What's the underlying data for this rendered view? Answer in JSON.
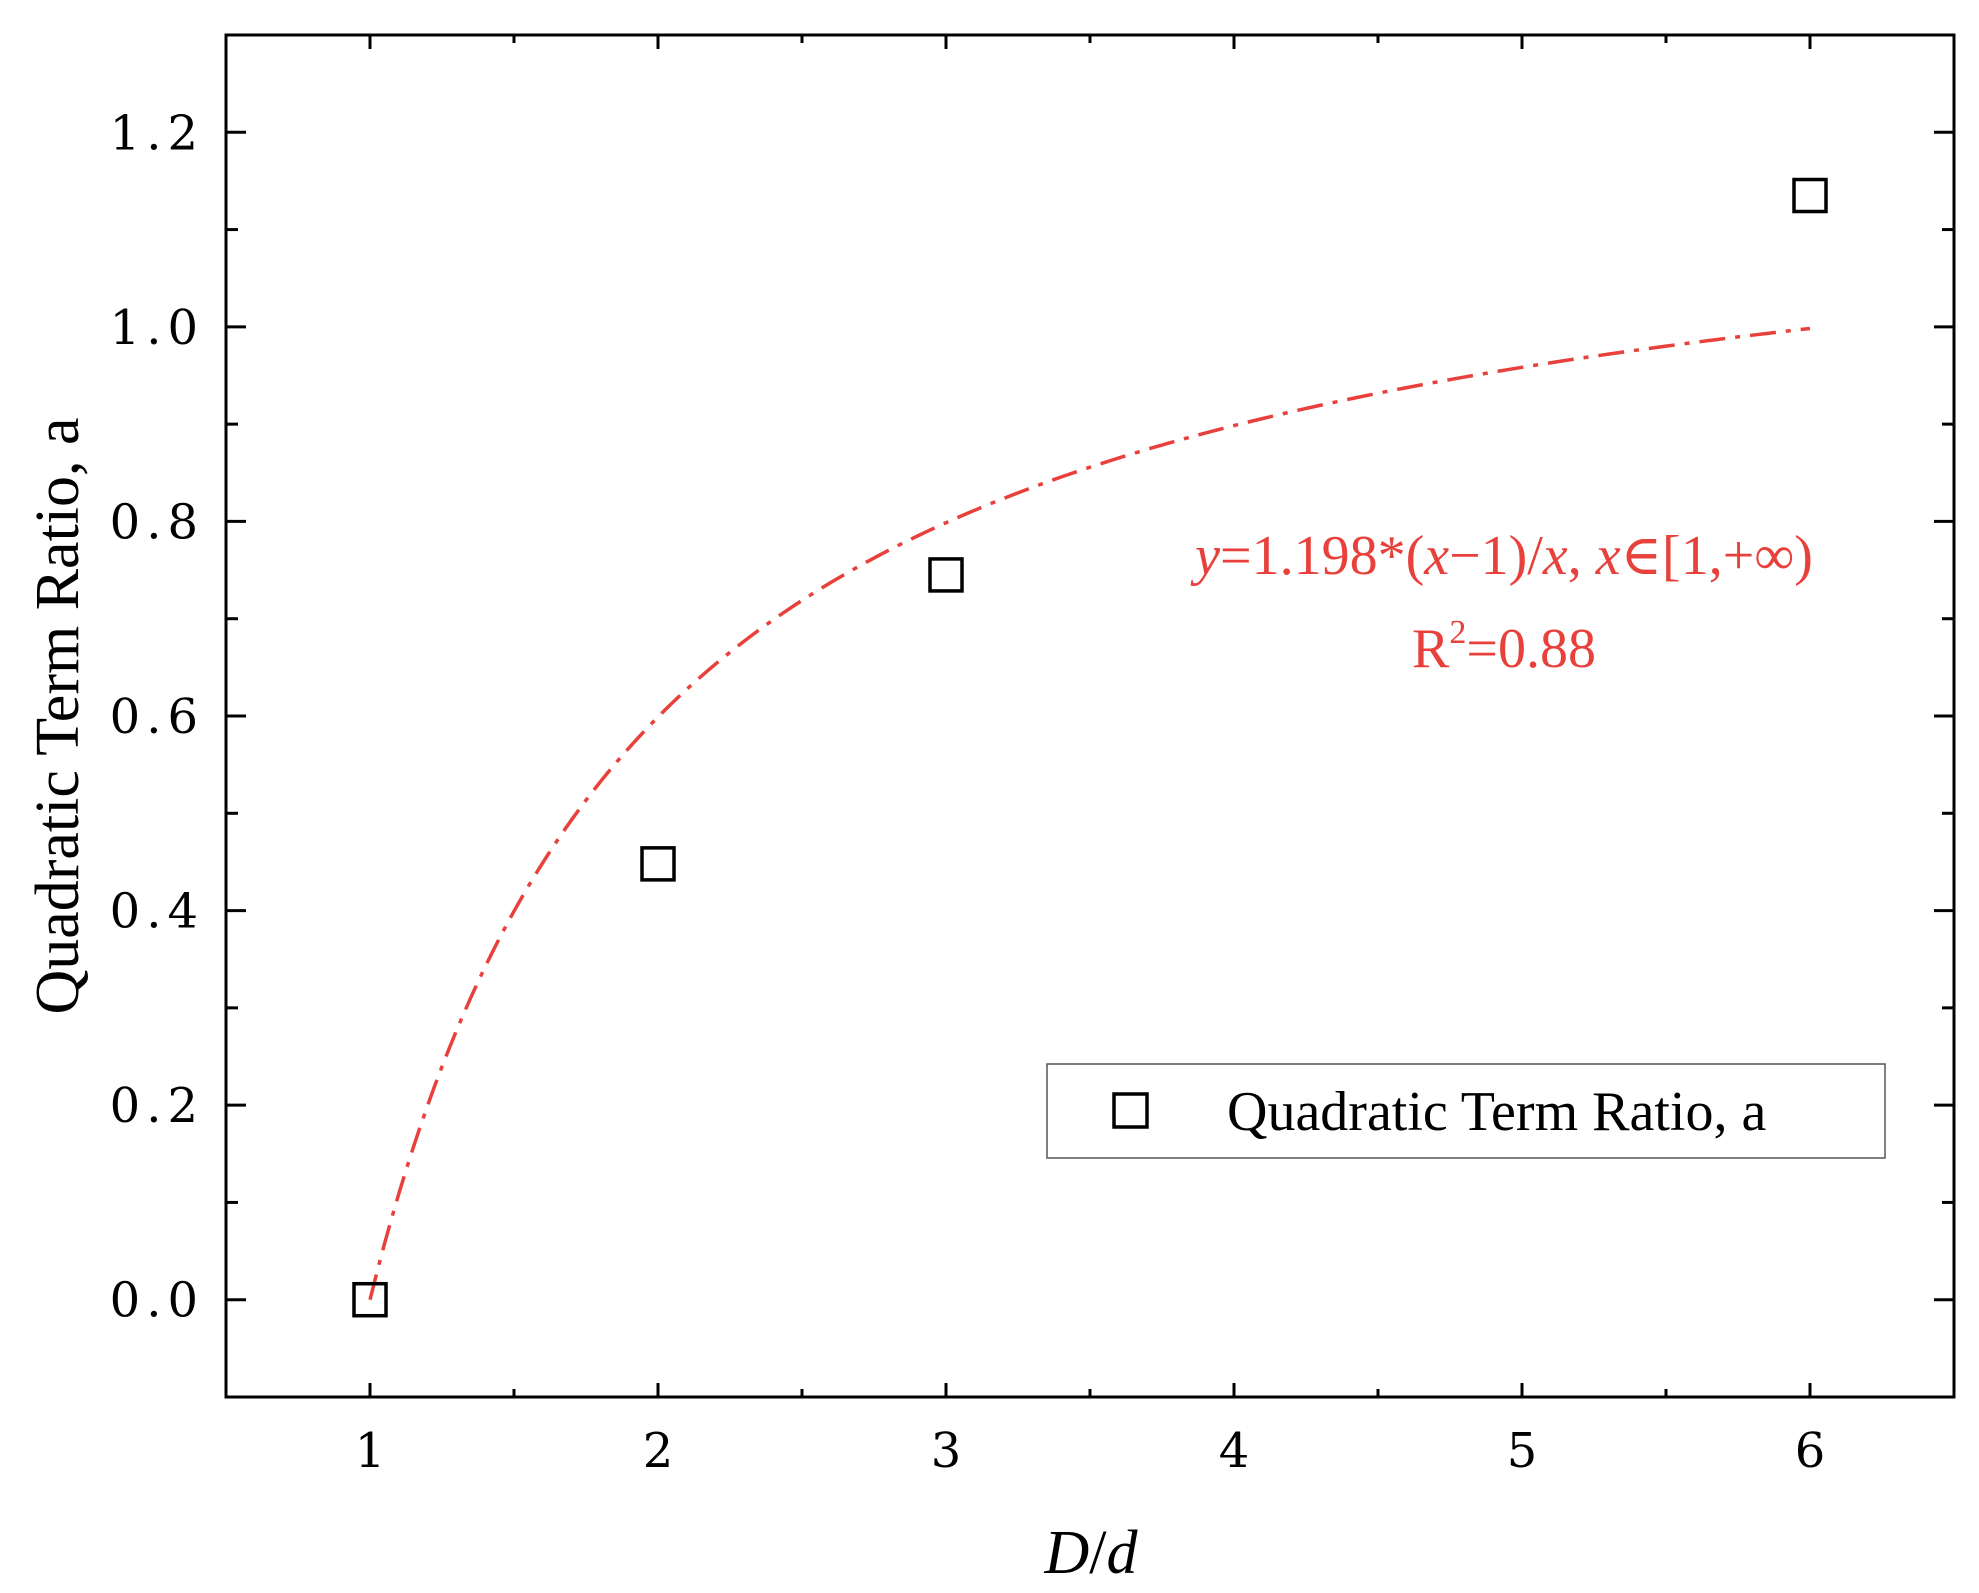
{
  "chart_data": {
    "type": "scatter",
    "xlabel_italic": "D",
    "xlabel_sep": "/",
    "xlabel_italic2": "d",
    "ylabel": "Quadratic Term Ratio, a",
    "xlim": [
      0.5,
      6.5
    ],
    "ylim": [
      -0.1,
      1.3
    ],
    "x_ticks": [
      1,
      2,
      3,
      4,
      5,
      6
    ],
    "x_tick_labels": [
      "1",
      "2",
      "3",
      "4",
      "5",
      "6"
    ],
    "y_ticks": [
      0.0,
      0.2,
      0.4,
      0.6,
      0.8,
      1.0,
      1.2
    ],
    "y_tick_labels": [
      "0.0",
      "0.2",
      "0.4",
      "0.6",
      "0.8",
      "1.0",
      "1.2"
    ],
    "grid": false,
    "series": [
      {
        "name": "Quadratic Term Ratio, a",
        "marker": "open-square",
        "color": "#000000",
        "x": [
          1,
          2,
          3,
          6
        ],
        "y": [
          0.0,
          0.448,
          0.745,
          1.135
        ]
      }
    ],
    "fit": {
      "color": "#e8413c",
      "style": "dash-dot",
      "coefficient": 1.198,
      "x_range": [
        1,
        6
      ],
      "equation": {
        "y": "y",
        "eq_coef": "=1.198*(",
        "x1": "x",
        "minus_one": "−1)/",
        "x2": "x",
        "comma": ", ",
        "x3": "x",
        "domain": "∈[1,+∞)"
      },
      "r2": {
        "r": "R",
        "sup": "2",
        "value": "=0.88"
      }
    },
    "legend": {
      "placement": "bottom-right",
      "entries": [
        "Quadratic Term Ratio, a"
      ]
    }
  }
}
